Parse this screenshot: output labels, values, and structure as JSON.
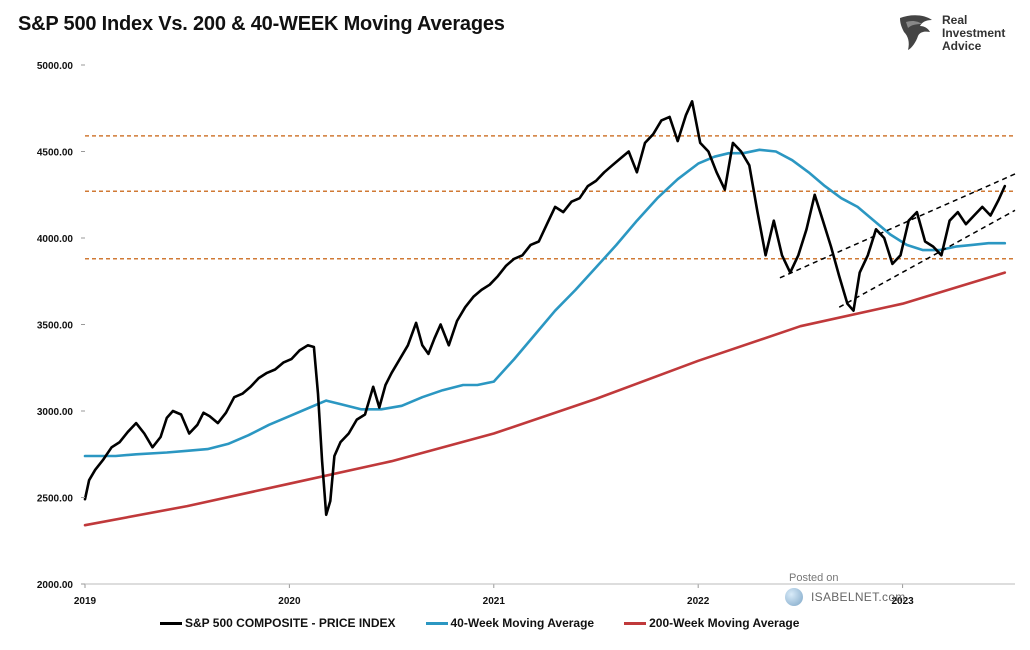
{
  "header": {
    "title": "S&P 500 Index Vs. 200 & 40-WEEK Moving Averages"
  },
  "logo": {
    "line1": "Real",
    "line2": "Investment",
    "line3": "Advice"
  },
  "watermark": {
    "posted": "Posted on",
    "site": "ISABELNET.com"
  },
  "colors": {
    "price": "#000000",
    "ma40": "#2b97c2",
    "ma200": "#c0393b",
    "levels": "#d07a35",
    "trend": "#000000"
  },
  "chart_data": {
    "type": "line",
    "title": "S&P 500 Index Vs. 200 & 40-WEEK Moving Averages",
    "xlabel": "",
    "ylabel": "",
    "xlim": [
      2019.0,
      2023.55
    ],
    "ylim": [
      2000,
      5000
    ],
    "y_ticks": [
      2000,
      2500,
      3000,
      3500,
      4000,
      4500,
      5000
    ],
    "y_tick_labels": [
      "2000.00",
      "2500.00",
      "3000.00",
      "3500.00",
      "4000.00",
      "4500.00",
      "5000.00"
    ],
    "x_ticks": [
      2019,
      2020,
      2021,
      2022,
      2023
    ],
    "x_tick_labels": [
      "2019",
      "2020",
      "2021",
      "2022",
      "2023"
    ],
    "legend_position": "bottom",
    "series": [
      {
        "name": "S&P 500 COMPOSITE - PRICE INDEX",
        "color": "#000000",
        "x": [
          2019.0,
          2019.02,
          2019.05,
          2019.09,
          2019.13,
          2019.17,
          2019.21,
          2019.25,
          2019.29,
          2019.33,
          2019.37,
          2019.4,
          2019.43,
          2019.47,
          2019.51,
          2019.55,
          2019.58,
          2019.61,
          2019.65,
          2019.69,
          2019.73,
          2019.77,
          2019.81,
          2019.85,
          2019.89,
          2019.93,
          2019.97,
          2020.01,
          2020.05,
          2020.09,
          2020.12,
          2020.14,
          2020.16,
          2020.18,
          2020.2,
          2020.22,
          2020.25,
          2020.29,
          2020.33,
          2020.37,
          2020.41,
          2020.44,
          2020.47,
          2020.5,
          2020.54,
          2020.58,
          2020.62,
          2020.65,
          2020.68,
          2020.71,
          2020.74,
          2020.78,
          2020.82,
          2020.86,
          2020.9,
          2020.94,
          2020.98,
          2021.02,
          2021.06,
          2021.1,
          2021.14,
          2021.18,
          2021.22,
          2021.26,
          2021.3,
          2021.34,
          2021.38,
          2021.42,
          2021.46,
          2021.5,
          2021.54,
          2021.58,
          2021.62,
          2021.66,
          2021.7,
          2021.74,
          2021.78,
          2021.82,
          2021.86,
          2021.9,
          2021.94,
          2021.97,
          2022.01,
          2022.05,
          2022.09,
          2022.13,
          2022.17,
          2022.21,
          2022.25,
          2022.29,
          2022.33,
          2022.37,
          2022.41,
          2022.45,
          2022.49,
          2022.53,
          2022.57,
          2022.61,
          2022.65,
          2022.69,
          2022.73,
          2022.76,
          2022.79,
          2022.83,
          2022.87,
          2022.91,
          2022.95,
          2022.99,
          2023.03,
          2023.07,
          2023.11,
          2023.15,
          2023.19,
          2023.23,
          2023.27,
          2023.31,
          2023.35,
          2023.39,
          2023.43,
          2023.47,
          2023.5
        ],
        "values": [
          2490,
          2600,
          2660,
          2720,
          2790,
          2820,
          2880,
          2930,
          2870,
          2790,
          2850,
          2960,
          3000,
          2980,
          2870,
          2920,
          2990,
          2970,
          2930,
          2990,
          3080,
          3100,
          3140,
          3190,
          3220,
          3240,
          3280,
          3300,
          3350,
          3380,
          3370,
          3100,
          2710,
          2400,
          2480,
          2740,
          2820,
          2870,
          2950,
          2980,
          3140,
          3020,
          3150,
          3220,
          3300,
          3380,
          3510,
          3380,
          3330,
          3420,
          3500,
          3380,
          3520,
          3600,
          3660,
          3700,
          3730,
          3780,
          3840,
          3880,
          3900,
          3960,
          3980,
          4080,
          4180,
          4150,
          4210,
          4230,
          4300,
          4330,
          4380,
          4420,
          4460,
          4500,
          4380,
          4550,
          4600,
          4680,
          4700,
          4560,
          4710,
          4790,
          4550,
          4500,
          4380,
          4280,
          4550,
          4500,
          4420,
          4150,
          3900,
          4100,
          3900,
          3800,
          3900,
          4050,
          4250,
          4100,
          3950,
          3780,
          3620,
          3580,
          3800,
          3900,
          4050,
          4000,
          3850,
          3900,
          4100,
          4150,
          3980,
          3950,
          3900,
          4100,
          4150,
          4080,
          4130,
          4180,
          4130,
          4220,
          4300
        ]
      },
      {
        "name": "40-Week Moving Average",
        "color": "#2b97c2",
        "x": [
          2019.0,
          2019.15,
          2019.25,
          2019.4,
          2019.5,
          2019.6,
          2019.7,
          2019.8,
          2019.9,
          2020.0,
          2020.1,
          2020.18,
          2020.25,
          2020.35,
          2020.45,
          2020.55,
          2020.65,
          2020.75,
          2020.85,
          2020.92,
          2021.0,
          2021.1,
          2021.2,
          2021.3,
          2021.4,
          2021.5,
          2021.6,
          2021.7,
          2021.8,
          2021.9,
          2022.0,
          2022.08,
          2022.15,
          2022.22,
          2022.3,
          2022.38,
          2022.46,
          2022.54,
          2022.62,
          2022.7,
          2022.78,
          2022.86,
          2022.94,
          2023.02,
          2023.1,
          2023.18,
          2023.26,
          2023.34,
          2023.42,
          2023.5
        ],
        "values": [
          2740,
          2740,
          2750,
          2760,
          2770,
          2780,
          2810,
          2860,
          2920,
          2970,
          3020,
          3060,
          3040,
          3010,
          3010,
          3030,
          3080,
          3120,
          3150,
          3150,
          3170,
          3300,
          3440,
          3580,
          3700,
          3830,
          3960,
          4100,
          4230,
          4340,
          4430,
          4470,
          4490,
          4490,
          4510,
          4500,
          4450,
          4380,
          4300,
          4230,
          4180,
          4100,
          4020,
          3960,
          3930,
          3930,
          3950,
          3960,
          3970,
          3970
        ]
      },
      {
        "name": "200-Week Moving Average",
        "color": "#c0393b",
        "x": [
          2019.0,
          2019.5,
          2020.0,
          2020.5,
          2021.0,
          2021.5,
          2022.0,
          2022.5,
          2023.0,
          2023.5
        ],
        "values": [
          2340,
          2450,
          2580,
          2710,
          2870,
          3070,
          3290,
          3490,
          3620,
          3800
        ]
      }
    ],
    "horizontal_levels": [
      4590,
      4270,
      3880
    ],
    "trend_lines": [
      {
        "x": [
          2022.69,
          2023.55
        ],
        "values": [
          3600,
          4160
        ]
      },
      {
        "x": [
          2022.4,
          2023.55
        ],
        "values": [
          3770,
          4370
        ]
      }
    ]
  }
}
